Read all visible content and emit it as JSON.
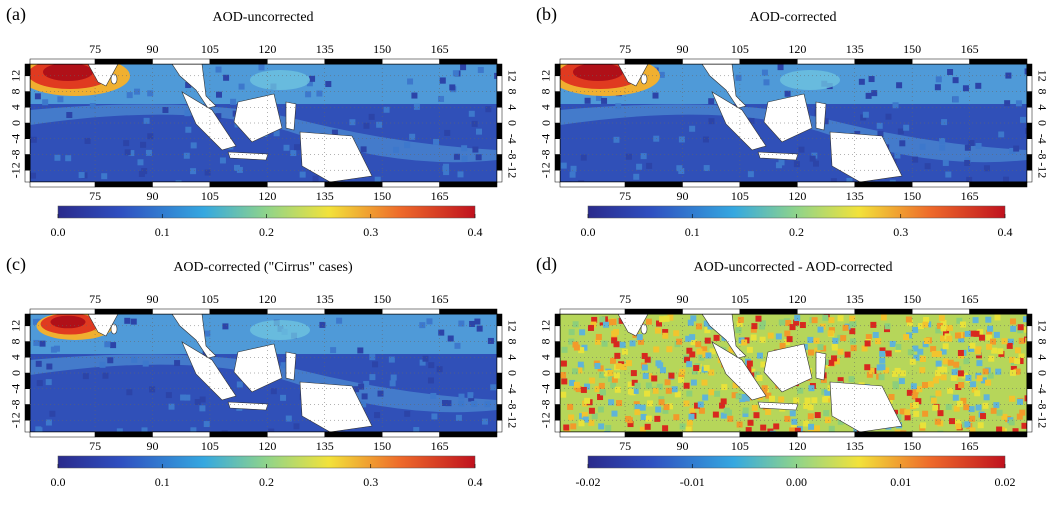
{
  "lon_range": [
    58,
    180
  ],
  "lat_range": [
    -15,
    15
  ],
  "lon_ticks": [
    75,
    90,
    105,
    120,
    135,
    150,
    165
  ],
  "lat_ticks": [
    -12,
    -8,
    -4,
    0,
    4,
    8,
    12
  ],
  "panels": [
    {
      "label": "(a)",
      "title": "AOD-uncorrected",
      "colorbar": {
        "range": [
          0,
          0.4
        ],
        "ticks": [
          {
            "value": 0,
            "label": "0.0"
          },
          0.1,
          0.2,
          0.3,
          0.4
        ]
      }
    },
    {
      "label": "(b)",
      "title": "AOD-corrected",
      "colorbar": {
        "range": [
          0,
          0.4
        ],
        "ticks": [
          {
            "value": 0,
            "label": "0.0"
          },
          0.1,
          0.2,
          0.3,
          0.4
        ]
      }
    },
    {
      "label": "(c)",
      "title": "AOD-corrected (\"Cirrus\" cases)",
      "colorbar": {
        "range": [
          0,
          0.4
        ],
        "ticks": [
          {
            "value": 0,
            "label": "0.0"
          },
          0.1,
          0.2,
          0.3,
          0.4
        ]
      }
    },
    {
      "label": "(d)",
      "title": "AOD-uncorrected - AOD-corrected",
      "colorbar": {
        "range": [
          -0.02,
          0.02
        ],
        "ticks": [
          -0.02,
          -0.01,
          {
            "value": 0,
            "label": "0.00"
          },
          0.01,
          0.02
        ]
      }
    }
  ]
}
